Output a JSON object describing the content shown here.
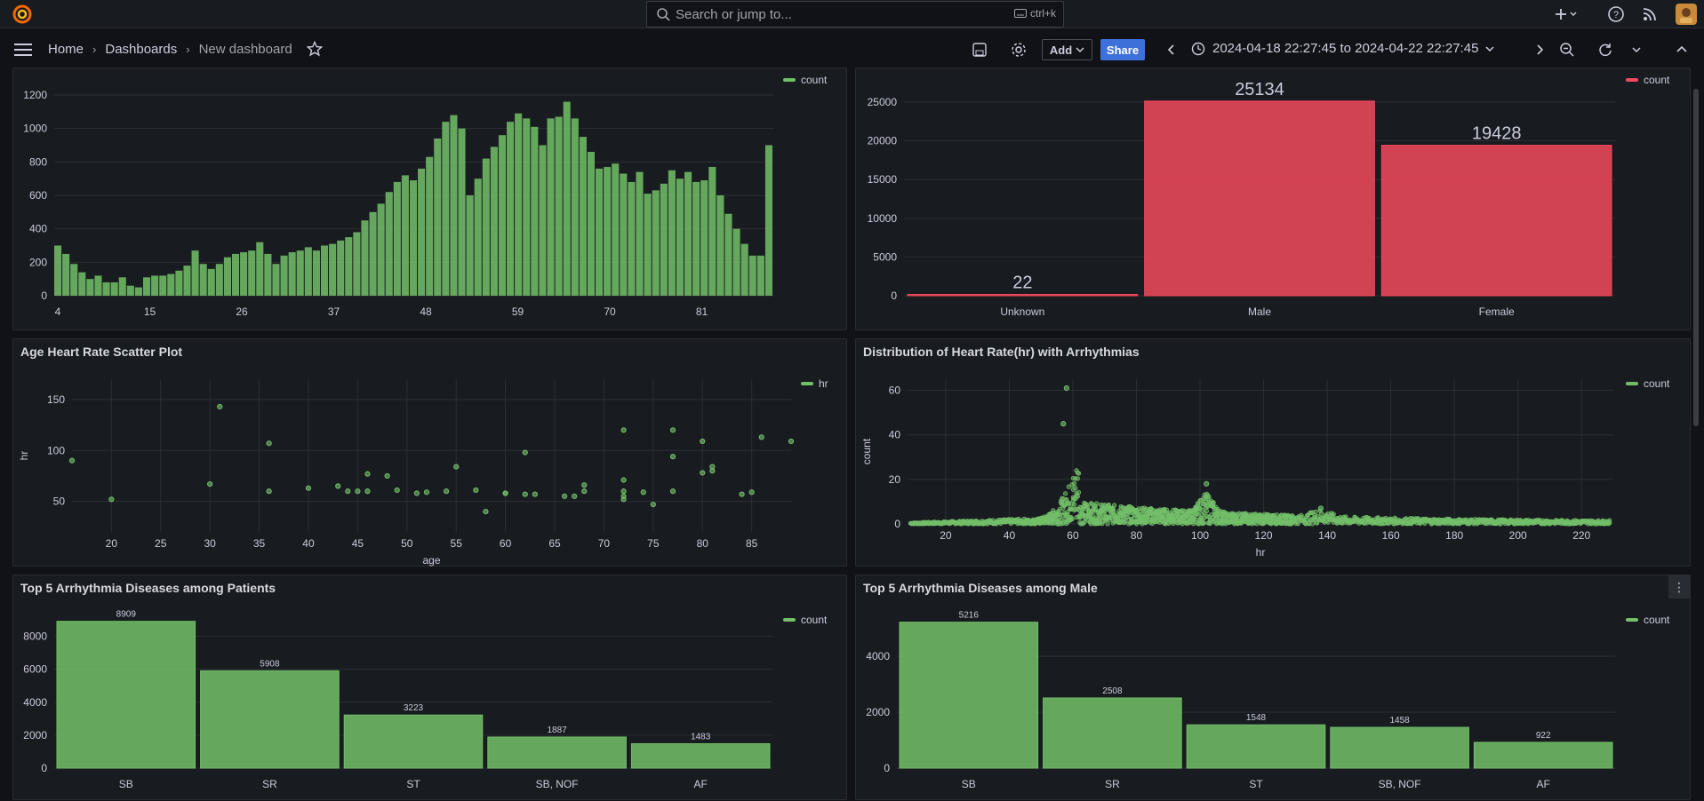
{
  "topbar": {
    "search_placeholder": "Search or jump to...",
    "search_shortcut": "ctrl+k"
  },
  "navbar": {
    "crumbs": [
      "Home",
      "Dashboards",
      "New dashboard"
    ],
    "add_label": "Add",
    "share_label": "Share",
    "time_range": "2024-04-18 22:27:45 to 2024-04-22 22:27:45"
  },
  "colors": {
    "green": "#73bf69",
    "red": "#f2495c"
  },
  "panels": {
    "age_hist": {
      "title": "",
      "legend": "count",
      "chart_data": {
        "type": "bar",
        "x_ticks": [
          "4",
          "15",
          "26",
          "37",
          "48",
          "59",
          "70",
          "81"
        ],
        "ylim": [
          0,
          1200
        ],
        "y_ticks": [
          0,
          200,
          400,
          600,
          800,
          1000,
          1200
        ],
        "values": [
          300,
          250,
          190,
          140,
          100,
          120,
          80,
          80,
          110,
          60,
          50,
          110,
          120,
          120,
          130,
          150,
          180,
          270,
          190,
          160,
          190,
          230,
          250,
          260,
          270,
          320,
          250,
          190,
          240,
          260,
          270,
          290,
          270,
          300,
          310,
          330,
          350,
          380,
          450,
          500,
          550,
          620,
          680,
          720,
          690,
          760,
          830,
          940,
          1040,
          1080,
          1000,
          600,
          700,
          820,
          890,
          960,
          1040,
          1090,
          1060,
          1010,
          900,
          1060,
          1070,
          1160,
          1060,
          950,
          860,
          760,
          770,
          790,
          730,
          680,
          740,
          610,
          630,
          670,
          750,
          700,
          740,
          680,
          690,
          770,
          600,
          490,
          400,
          310,
          240,
          240,
          900
        ]
      }
    },
    "gender": {
      "title": "",
      "legend": "count",
      "chart_data": {
        "type": "bar",
        "categories": [
          "Unknown",
          "Male",
          "Female"
        ],
        "values": [
          22,
          25134,
          19428
        ],
        "ylim": [
          0,
          25000
        ],
        "y_ticks": [
          0,
          5000,
          10000,
          15000,
          20000,
          25000
        ]
      }
    },
    "age_hr": {
      "title": "Age Heart Rate Scatter Plot",
      "legend": "hr",
      "chart_data": {
        "type": "scatter",
        "xlabel": "age",
        "ylabel": "hr",
        "x_ticks": [
          20,
          25,
          30,
          35,
          40,
          45,
          50,
          55,
          60,
          65,
          70,
          75,
          80,
          85
        ],
        "y_ticks": [
          50,
          100,
          150
        ],
        "xlim": [
          16,
          89
        ],
        "ylim": [
          20,
          170
        ],
        "points": [
          [
            16,
            90
          ],
          [
            20,
            52
          ],
          [
            30,
            67
          ],
          [
            31,
            143
          ],
          [
            36,
            107
          ],
          [
            36,
            60
          ],
          [
            40,
            63
          ],
          [
            43,
            65
          ],
          [
            44,
            60
          ],
          [
            45,
            60
          ],
          [
            46,
            77
          ],
          [
            46,
            60
          ],
          [
            48,
            75
          ],
          [
            49,
            61
          ],
          [
            51,
            58
          ],
          [
            52,
            59
          ],
          [
            54,
            60
          ],
          [
            55,
            84
          ],
          [
            57,
            61
          ],
          [
            58,
            40
          ],
          [
            60,
            58
          ],
          [
            60,
            58
          ],
          [
            62,
            98
          ],
          [
            62,
            57
          ],
          [
            63,
            57
          ],
          [
            66,
            55
          ],
          [
            67,
            55
          ],
          [
            68,
            60
          ],
          [
            68,
            66
          ],
          [
            72,
            120
          ],
          [
            72,
            71
          ],
          [
            72,
            60
          ],
          [
            72,
            55
          ],
          [
            72,
            52
          ],
          [
            74,
            59
          ],
          [
            75,
            47
          ],
          [
            77,
            94
          ],
          [
            77,
            60
          ],
          [
            77,
            120
          ],
          [
            80,
            109
          ],
          [
            80,
            78
          ],
          [
            81,
            80
          ],
          [
            81,
            84
          ],
          [
            84,
            57
          ],
          [
            85,
            59
          ],
          [
            86,
            113
          ],
          [
            89,
            109
          ]
        ]
      }
    },
    "hr_dist": {
      "title": "Distribution of Heart Rate(hr) with Arrhythmias",
      "legend": "count",
      "chart_data": {
        "type": "scatter",
        "xlabel": "hr",
        "ylabel": "count",
        "x_ticks": [
          20,
          40,
          60,
          80,
          100,
          120,
          140,
          160,
          180,
          200,
          220
        ],
        "y_ticks": [
          0,
          20,
          40,
          60
        ],
        "xlim": [
          8,
          230
        ],
        "ylim": [
          0,
          65
        ],
        "peaks": [
          [
            58,
            61
          ],
          [
            57,
            45
          ],
          [
            102,
            18
          ],
          [
            138,
            7
          ]
        ]
      }
    },
    "top5_all": {
      "title": "Top 5 Arrhythmia Diseases among Patients",
      "legend": "count",
      "chart_data": {
        "type": "bar",
        "categories": [
          "SB",
          "SR",
          "ST",
          "SB, NOF",
          "AF"
        ],
        "values": [
          8909,
          5908,
          3223,
          1887,
          1483
        ],
        "ylim": [
          0,
          9000
        ],
        "y_ticks": [
          0,
          2000,
          4000,
          6000,
          8000
        ]
      }
    },
    "top5_male": {
      "title": "Top 5 Arrhythmia Diseases among Male",
      "legend": "count",
      "chart_data": {
        "type": "bar",
        "categories": [
          "SB",
          "SR",
          "ST",
          "SB, NOF",
          "AF"
        ],
        "values": [
          5216,
          2508,
          1548,
          1458,
          922
        ],
        "ylim": [
          0,
          5300
        ],
        "y_ticks": [
          0,
          2000,
          4000
        ]
      }
    }
  }
}
